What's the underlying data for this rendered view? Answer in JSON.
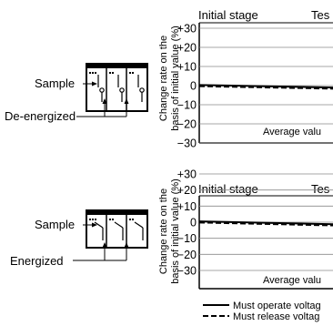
{
  "chart_data": [
    {
      "type": "line",
      "title": "Initial stage",
      "title_extra": "Tes",
      "ylabel_lines": [
        "Change rate on the",
        "basis of initial value (%)"
      ],
      "y_ticks": [
        "+30",
        "+20",
        "+10",
        "0",
        "−10",
        "−20",
        "−30"
      ],
      "ylim": [
        -30,
        30
      ],
      "annotation": "Average valu",
      "series": [
        {
          "name": "Must operate voltag",
          "style": "solid",
          "x": [
            0,
            1
          ],
          "y": [
            0.3,
            -1.0
          ]
        },
        {
          "name": "Must release voltag",
          "style": "dashed",
          "x": [
            0,
            1
          ],
          "y": [
            -0.3,
            -1.6
          ]
        }
      ]
    },
    {
      "type": "line",
      "title": "Initial stage",
      "title_extra": "Tes",
      "ylabel_lines": [
        "Change rate on the",
        "basis of initial value (%)"
      ],
      "y_ticks": [
        "+30",
        "+20",
        "+10",
        "0",
        "−10",
        "−20",
        "−30"
      ],
      "ylim": [
        -30,
        30
      ],
      "annotation": "Average valu",
      "series": [
        {
          "name": "Must operate voltag",
          "style": "solid",
          "x": [
            0,
            1
          ],
          "y": [
            0.5,
            -1.3
          ]
        },
        {
          "name": "Must release voltag",
          "style": "dashed",
          "x": [
            0,
            1
          ],
          "y": [
            -0.2,
            -2.0
          ]
        }
      ]
    }
  ],
  "diagrams": [
    {
      "sample_label": "Sample",
      "state_label": "De-energized"
    },
    {
      "sample_label": "Sample",
      "state_label": "Energized"
    }
  ],
  "legend": {
    "items": [
      {
        "label": "Must operate voltag",
        "style": "solid"
      },
      {
        "label": "Must release voltag",
        "style": "dashed"
      }
    ]
  }
}
